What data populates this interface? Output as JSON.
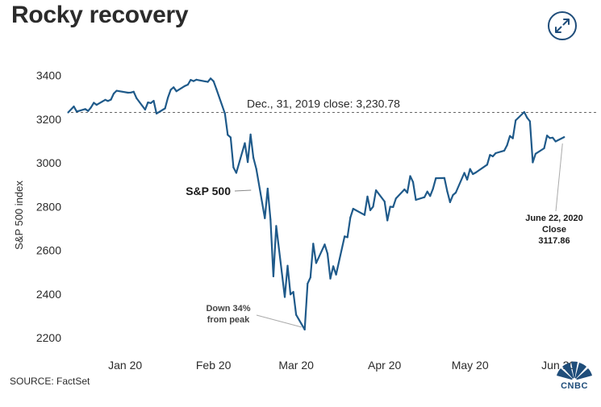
{
  "title": "Rocky recovery",
  "source": "SOURCE: FactSet",
  "logo": {
    "text": "CNBC",
    "icon": "cnbc-peacock-icon"
  },
  "expand_icon": "expand-arrows-icon",
  "colors": {
    "line": "#1f5a8a",
    "reference": "#666666",
    "accent": "#1f4d7a"
  },
  "chart_data": {
    "type": "line",
    "title": "Rocky recovery",
    "xlabel": "",
    "ylabel": "S&P 500 index",
    "x_tick_labels": [
      "Jan 20",
      "Feb 20",
      "Mar 20",
      "Apr 20",
      "May 20",
      "Jun 20"
    ],
    "x_tick_dates": [
      "2020-01-20",
      "2020-02-20",
      "2020-03-20",
      "2020-04-20",
      "2020-05-20",
      "2020-06-20"
    ],
    "xlim": [
      "2020-01-01",
      "2020-06-29"
    ],
    "y_ticks": [
      2200,
      2400,
      2600,
      2800,
      3000,
      3200,
      3400
    ],
    "ylim": [
      2130,
      3450
    ],
    "grid": false,
    "series": [
      {
        "name": "S&P 500",
        "x": [
          "2019-12-31",
          "2020-01-02",
          "2020-01-03",
          "2020-01-06",
          "2020-01-07",
          "2020-01-08",
          "2020-01-09",
          "2020-01-10",
          "2020-01-13",
          "2020-01-14",
          "2020-01-15",
          "2020-01-16",
          "2020-01-17",
          "2020-01-21",
          "2020-01-22",
          "2020-01-23",
          "2020-01-24",
          "2020-01-27",
          "2020-01-28",
          "2020-01-29",
          "2020-01-30",
          "2020-01-31",
          "2020-02-03",
          "2020-02-04",
          "2020-02-05",
          "2020-02-06",
          "2020-02-07",
          "2020-02-10",
          "2020-02-11",
          "2020-02-12",
          "2020-02-13",
          "2020-02-14",
          "2020-02-18",
          "2020-02-19",
          "2020-02-20",
          "2020-02-21",
          "2020-02-24",
          "2020-02-25",
          "2020-02-26",
          "2020-02-27",
          "2020-02-28",
          "2020-03-02",
          "2020-03-03",
          "2020-03-04",
          "2020-03-05",
          "2020-03-06",
          "2020-03-09",
          "2020-03-10",
          "2020-03-11",
          "2020-03-12",
          "2020-03-13",
          "2020-03-16",
          "2020-03-17",
          "2020-03-18",
          "2020-03-19",
          "2020-03-20",
          "2020-03-23",
          "2020-03-24",
          "2020-03-25",
          "2020-03-26",
          "2020-03-27",
          "2020-03-30",
          "2020-03-31",
          "2020-04-01",
          "2020-04-02",
          "2020-04-03",
          "2020-04-06",
          "2020-04-07",
          "2020-04-08",
          "2020-04-09",
          "2020-04-13",
          "2020-04-14",
          "2020-04-15",
          "2020-04-16",
          "2020-04-17",
          "2020-04-20",
          "2020-04-21",
          "2020-04-22",
          "2020-04-23",
          "2020-04-24",
          "2020-04-27",
          "2020-04-28",
          "2020-04-29",
          "2020-04-30",
          "2020-05-01",
          "2020-05-04",
          "2020-05-05",
          "2020-05-06",
          "2020-05-07",
          "2020-05-08",
          "2020-05-11",
          "2020-05-12",
          "2020-05-13",
          "2020-05-14",
          "2020-05-15",
          "2020-05-18",
          "2020-05-19",
          "2020-05-20",
          "2020-05-21",
          "2020-05-22",
          "2020-05-26",
          "2020-05-27",
          "2020-05-28",
          "2020-05-29",
          "2020-06-01",
          "2020-06-02",
          "2020-06-03",
          "2020-06-04",
          "2020-06-05",
          "2020-06-08",
          "2020-06-09",
          "2020-06-10",
          "2020-06-11",
          "2020-06-12",
          "2020-06-15",
          "2020-06-16",
          "2020-06-17",
          "2020-06-18",
          "2020-06-19",
          "2020-06-22"
        ],
        "y": [
          3230.78,
          3257.85,
          3234.85,
          3246.28,
          3237.18,
          3253.05,
          3274.7,
          3265.35,
          3288.13,
          3283.15,
          3289.29,
          3316.81,
          3329.62,
          3320.79,
          3321.75,
          3325.54,
          3295.47,
          3243.63,
          3276.24,
          3273.4,
          3283.66,
          3225.52,
          3248.92,
          3297.59,
          3334.69,
          3345.78,
          3327.71,
          3352.09,
          3357.75,
          3379.45,
          3373.94,
          3380.16,
          3370.29,
          3386.15,
          3373.23,
          3337.75,
          3225.89,
          3128.21,
          3116.39,
          2978.76,
          2954.22,
          3090.23,
          3003.37,
          3130.12,
          3023.94,
          2972.37,
          2746.56,
          2882.23,
          2741.38,
          2480.64,
          2711.02,
          2386.13,
          2529.19,
          2398.1,
          2409.39,
          2304.92,
          2237.4,
          2447.33,
          2475.56,
          2630.07,
          2541.47,
          2626.65,
          2584.59,
          2470.5,
          2526.9,
          2488.65,
          2663.68,
          2659.41,
          2749.98,
          2789.82,
          2761.63,
          2846.06,
          2783.36,
          2799.55,
          2874.56,
          2823.16,
          2736.56,
          2799.31,
          2797.8,
          2836.74,
          2878.48,
          2863.39,
          2939.51,
          2912.43,
          2830.71,
          2842.74,
          2868.44,
          2848.42,
          2881.19,
          2929.8,
          2930.32,
          2870.12,
          2820.0,
          2852.5,
          2863.7,
          2953.91,
          2922.94,
          2971.61,
          2948.51,
          2955.45,
          2991.77,
          3036.13,
          3029.73,
          3044.31,
          3055.73,
          3080.82,
          3122.87,
          3112.35,
          3193.93,
          3232.39,
          3207.18,
          3190.14,
          3002.1,
          3041.31,
          3066.59,
          3124.74,
          3113.49,
          3115.34,
          3097.74,
          3117.86
        ]
      }
    ],
    "annotations": {
      "reference_line": {
        "value": 3230.78,
        "label": "Dec., 31, 2019 close:  3,230.78"
      },
      "series_label": "S&P 500",
      "trough": {
        "line1": "Down 34%",
        "line2": "from peak",
        "date": "2020-03-23",
        "value": 2237.4
      },
      "last": {
        "line1": "June 22, 2020",
        "line2": "Close",
        "line3": "3117.86",
        "date": "2020-06-22",
        "value": 3117.86
      }
    }
  }
}
